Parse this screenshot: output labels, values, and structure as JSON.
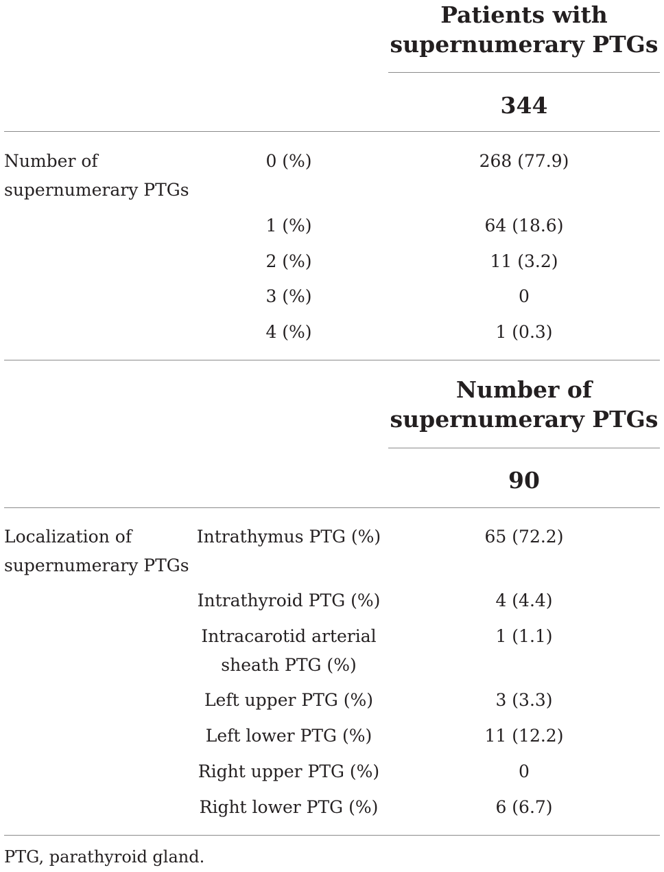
{
  "section1": {
    "header_line1": "Patients with",
    "header_line2": "supernumerary PTGs",
    "total": "344",
    "row_label_line1": "Number of",
    "row_label_line2": "supernumerary PTGs",
    "rows": [
      {
        "category": "0 (%)",
        "value": "268 (77.9)"
      },
      {
        "category": "1 (%)",
        "value": "64 (18.6)"
      },
      {
        "category": "2 (%)",
        "value": "11 (3.2)"
      },
      {
        "category": "3 (%)",
        "value": "0"
      },
      {
        "category": "4 (%)",
        "value": "1 (0.3)"
      }
    ]
  },
  "section2": {
    "header_line1": "Number of",
    "header_line2": "supernumerary PTGs",
    "total": "90",
    "row_label_line1": "Localization of",
    "row_label_line2": "supernumerary PTGs",
    "rows": [
      {
        "category": "Intrathymus PTG (%)",
        "value": "65 (72.2)"
      },
      {
        "category": "Intrathyroid PTG (%)",
        "value": "4 (4.4)"
      },
      {
        "category_line1": "Intracarotid arterial",
        "category_line2": "sheath PTG (%)",
        "value": "1 (1.1)"
      },
      {
        "category": "Left upper PTG (%)",
        "value": "3 (3.3)"
      },
      {
        "category": "Left lower PTG (%)",
        "value": "11 (12.2)"
      },
      {
        "category": "Right upper PTG (%)",
        "value": "0"
      },
      {
        "category": "Right lower PTG (%)",
        "value": "6 (6.7)"
      }
    ]
  },
  "footnote": "PTG, parathyroid gland."
}
